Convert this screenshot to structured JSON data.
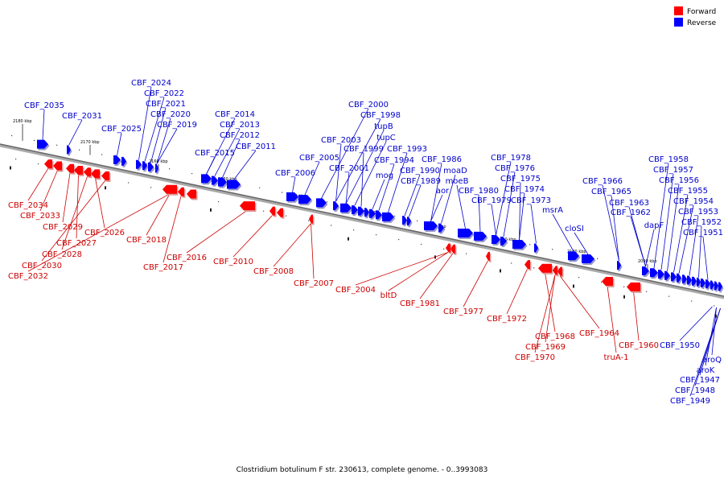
{
  "legend": {
    "forward": {
      "label": "Forward",
      "color": "#ff0000"
    },
    "reverse": {
      "label": "Reverse",
      "color": "#0000ff"
    }
  },
  "caption": "Clostridium botulinum F str. 230613, complete genome. - 0..3993083",
  "ticks": [
    "2180 kbp",
    "2170 kbp",
    "2160 kbp",
    "2150 kbp",
    "2140 kbp",
    "2130 kbp",
    "2120 kbp",
    "2110 kbp",
    "2100 kbp",
    "2090 kbp"
  ],
  "forward_labels": [
    "CBF_2034",
    "CBF_2033",
    "CBF_2029",
    "CBF_2027",
    "CBF_2028",
    "CBF_2026",
    "CBF_2030",
    "CBF_2032",
    "CBF_2018",
    "CBF_2017",
    "CBF_2016",
    "CBF_2010",
    "CBF_2008",
    "CBF_2007",
    "CBF_2004",
    "bltD",
    "CBF_1981",
    "CBF_1977",
    "CBF_1972",
    "CBF_1968",
    "CBF_1969",
    "CBF_1970",
    "CBF_1964",
    "truA-1",
    "CBF_1960"
  ],
  "reverse_labels": [
    "CBF_2035",
    "CBF_2031",
    "CBF_2024",
    "CBF_2022",
    "CBF_2021",
    "CBF_2020",
    "CBF_2019",
    "CBF_2025",
    "CBF_2014",
    "CBF_2013",
    "CBF_2012",
    "CBF_2011",
    "CBF_2015",
    "CBF_2006",
    "CBF_2005",
    "CBF_2000",
    "CBF_1998",
    "tupB",
    "tupC",
    "CBF_2003",
    "CBF_1999",
    "CBF_1993",
    "CBF_1994",
    "CBF_2001",
    "mog",
    "CBF_1986",
    "CBF_1990",
    "moaD",
    "CBF_1989",
    "moeB",
    "aor",
    "CBF_1978",
    "CBF_1976",
    "CBF_1975",
    "CBF_1980",
    "CBF_1974",
    "CBF_1979",
    "CBF_1973",
    "msrA",
    "cloSI",
    "CBF_1966",
    "CBF_1965",
    "CBF_1963",
    "CBF_1962",
    "dapF",
    "CBF_1958",
    "CBF_1957",
    "CBF_1956",
    "CBF_1955",
    "CBF_1954",
    "CBF_1953",
    "CBF_1952",
    "CBF_1951",
    "CBF_1950",
    "aroQ",
    "aroK",
    "CBF_1947",
    "CBF_1948",
    "CBF_1949"
  ]
}
